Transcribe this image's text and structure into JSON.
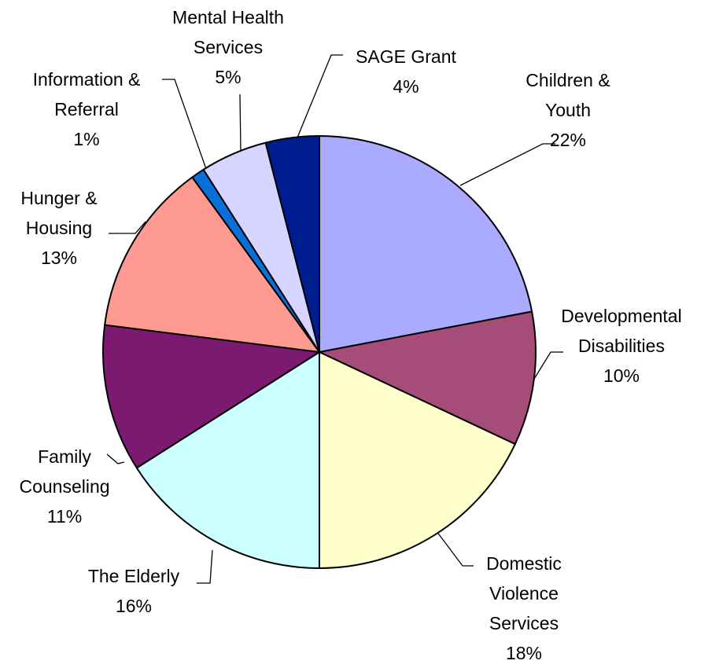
{
  "chart_data": {
    "type": "pie",
    "categories": [
      "Children & Youth",
      "Developmental Disabilities",
      "Domestic Violence Services",
      "The Elderly",
      "Family Counseling",
      "Hunger & Housing",
      "Information & Referral",
      "Mental Health Services",
      "SAGE Grant"
    ],
    "values": [
      22,
      10,
      18,
      16,
      11,
      13,
      1,
      5,
      4
    ],
    "value_labels": [
      "22%",
      "10%",
      "18%",
      "16%",
      "11%",
      "13%",
      "1%",
      "5%",
      "4%"
    ],
    "colors": [
      "#aaaaff",
      "#a64c79",
      "#ffffcc",
      "#ccffff",
      "#7b1a70",
      "#ff9a92",
      "#0a6fd6",
      "#d5d5ff",
      "#001d8f"
    ]
  }
}
